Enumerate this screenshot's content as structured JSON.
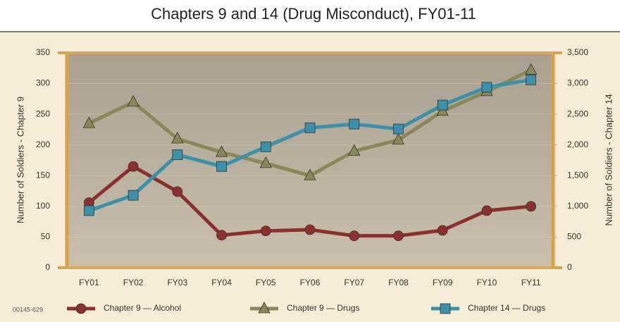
{
  "chart_data": {
    "type": "line",
    "title": "Chapters 9 and 14 (Drug Misconduct), FY01-11",
    "ylabel": "Number of Soldiers - Chapter 9",
    "y2label": "Number of Soldiers - Chapter 14",
    "footnote": "00145-629",
    "categories": [
      "FY01",
      "FY02",
      "FY03",
      "FY04",
      "FY05",
      "FY06",
      "FY07",
      "FY08",
      "FY09",
      "FY10",
      "FY11"
    ],
    "series": [
      {
        "name": "Chapter 9 — Alcohol",
        "color": "#8e2f2f",
        "marker": "circle",
        "axis": "y",
        "values": [
          106,
          165,
          124,
          53,
          60,
          62,
          52,
          52,
          61,
          93,
          100
        ]
      },
      {
        "name": "Chapter 9 — Drugs",
        "color": "#8a8858",
        "marker": "triangle",
        "axis": "y",
        "values": [
          235,
          270,
          210,
          188,
          170,
          150,
          190,
          208,
          255,
          287,
          322
        ]
      },
      {
        "name": "Chapter 14 — Drugs",
        "color": "#3b90aa",
        "marker": "square",
        "axis": "y2",
        "values": [
          930,
          1180,
          1840,
          1650,
          1970,
          2280,
          2340,
          2260,
          2650,
          2940,
          3060
        ]
      }
    ],
    "ylim": [
      0,
      350
    ],
    "yticks": [
      0,
      50,
      100,
      150,
      200,
      250,
      300,
      350
    ],
    "y2lim": [
      0,
      3500
    ],
    "y2ticks": [
      0,
      500,
      {
        "value": 1000,
        "label": "1,000"
      },
      {
        "value": 1500,
        "label": "1,500"
      },
      {
        "value": 2000,
        "label": "2,000"
      },
      {
        "value": 2500,
        "label": "2,500"
      },
      {
        "value": 3000,
        "label": "3,000"
      },
      {
        "value": 3500,
        "label": "3,500"
      }
    ],
    "grid": true
  }
}
